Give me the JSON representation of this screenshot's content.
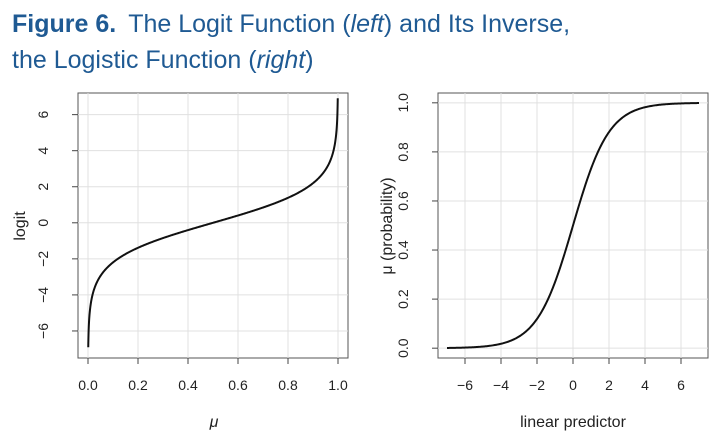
{
  "caption": {
    "figure_label": "Figure 6.",
    "part1": "The Logit Function (",
    "left": "left",
    "part2": ") and Its Inverse,",
    "part3": "the Logistic Function (",
    "right": "right",
    "part4": ")"
  },
  "chart_data": [
    {
      "type": "line",
      "title": "",
      "xlabel": "μ",
      "ylabel": "logit",
      "xlim": [
        -0.04,
        1.04
      ],
      "ylim": [
        -7.5,
        7.2
      ],
      "xticks": [
        0.0,
        0.2,
        0.4,
        0.6,
        0.8,
        1.0
      ],
      "xtick_labels": [
        "0.0",
        "0.2",
        "0.4",
        "0.6",
        "0.8",
        "1.0"
      ],
      "yticks": [
        -6,
        -4,
        -2,
        0,
        2,
        4,
        6
      ],
      "ytick_labels": [
        "−6",
        "−4",
        "−2",
        "0",
        "2",
        "4",
        "6"
      ],
      "grid": true,
      "function": "logit",
      "x": [
        0.001,
        0.002,
        0.005,
        0.01,
        0.02,
        0.05,
        0.1,
        0.2,
        0.3,
        0.4,
        0.5,
        0.6,
        0.7,
        0.8,
        0.9,
        0.95,
        0.98,
        0.99,
        0.995,
        0.998,
        0.999
      ],
      "y": [
        -6.9,
        -6.21,
        -5.29,
        -4.6,
        -3.89,
        -2.94,
        -2.2,
        -1.39,
        -0.85,
        -0.41,
        0.0,
        0.41,
        0.85,
        1.39,
        2.2,
        2.94,
        3.89,
        4.6,
        5.29,
        6.21,
        6.9
      ]
    },
    {
      "type": "line",
      "title": "",
      "xlabel": "linear predictor",
      "ylabel": "μ (probability)",
      "xlim": [
        -7.5,
        7.5
      ],
      "ylim": [
        -0.04,
        1.04
      ],
      "xticks": [
        -6,
        -4,
        -2,
        0,
        2,
        4,
        6
      ],
      "xtick_labels": [
        "−6",
        "−4",
        "−2",
        "0",
        "2",
        "4",
        "6"
      ],
      "yticks": [
        0.0,
        0.2,
        0.4,
        0.6,
        0.8,
        1.0
      ],
      "ytick_labels": [
        "0.0",
        "0.2",
        "0.4",
        "0.6",
        "0.8",
        "1.0"
      ],
      "grid": true,
      "function": "logistic",
      "x": [
        -7,
        -6,
        -5,
        -4,
        -3,
        -2,
        -1,
        0,
        1,
        2,
        3,
        4,
        5,
        6,
        7
      ],
      "y": [
        0.001,
        0.002,
        0.007,
        0.018,
        0.047,
        0.119,
        0.269,
        0.5,
        0.731,
        0.881,
        0.953,
        0.982,
        0.993,
        0.998,
        0.999
      ]
    }
  ]
}
